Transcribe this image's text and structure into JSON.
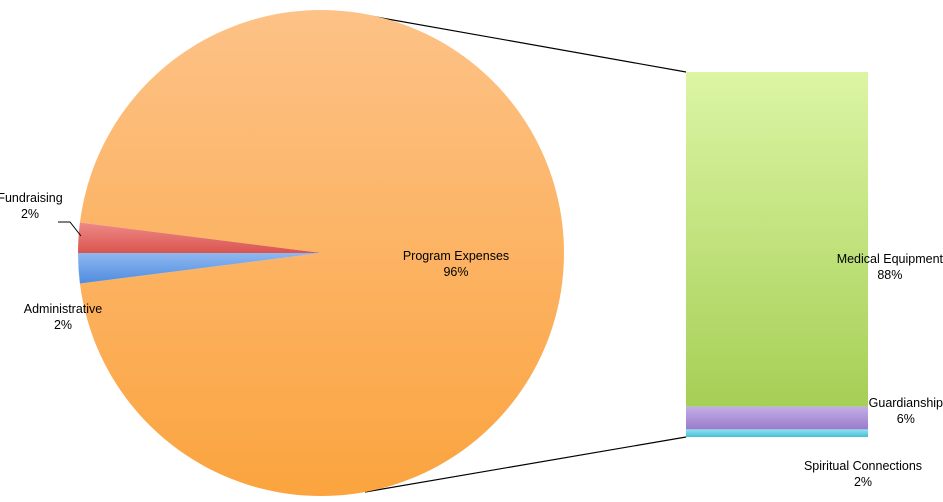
{
  "chart_data": {
    "type": "pie",
    "subtype": "bar-of-pie",
    "pie": {
      "slices": [
        {
          "label": "Program Expenses",
          "value": 96,
          "display": "96%",
          "color": "#fba850"
        },
        {
          "label": "Fundraising",
          "value": 2,
          "display": "2%",
          "color": "#e0605f"
        },
        {
          "label": "Administrative",
          "value": 2,
          "display": "2%",
          "color": "#5f97e4"
        }
      ]
    },
    "breakdown": {
      "of": "Program Expenses",
      "segments": [
        {
          "label": "Medical Equipment",
          "value": 88,
          "display": "88%",
          "color": "#b3d870"
        },
        {
          "label": "Guardianship",
          "value": 6,
          "display": "6%",
          "color": "#a98bd6"
        },
        {
          "label": "Spiritual Connections",
          "value": 2,
          "display": "2%",
          "color": "#5ccde0"
        }
      ]
    }
  }
}
